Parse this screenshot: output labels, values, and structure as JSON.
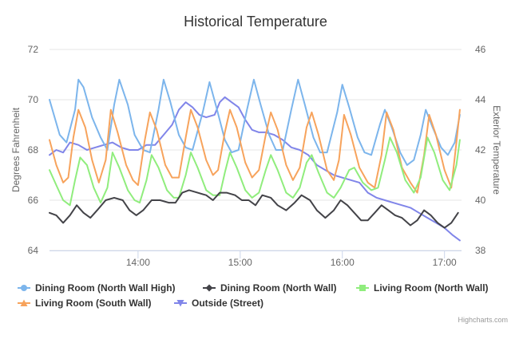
{
  "chart_data": {
    "type": "line",
    "title": "Historical Temperature",
    "ylabel": "Degrees Fahrenheit",
    "y2label": "Exterior Temperature",
    "ylim": [
      64,
      72
    ],
    "y2lim": [
      38,
      46
    ],
    "yticks": [
      "64",
      "66",
      "68",
      "70",
      "72"
    ],
    "y2ticks": [
      "38",
      "40",
      "42",
      "44",
      "46"
    ],
    "xlim": [
      "13:08",
      "17:10"
    ],
    "xticks": [
      "14:00",
      "15:00",
      "16:00",
      "17:00"
    ],
    "legend_position": "bottom",
    "credits": "Highcharts.com",
    "series": [
      {
        "name": "Dining Room (North Wall High)",
        "color": "#7cb5ec",
        "marker": "circle",
        "axis": "left",
        "points": [
          [
            "13:08",
            70.0
          ],
          [
            "13:14",
            68.6
          ],
          [
            "13:18",
            68.3
          ],
          [
            "13:23",
            69.6
          ],
          [
            "13:25",
            70.8
          ],
          [
            "13:28",
            70.5
          ],
          [
            "13:33",
            69.3
          ],
          [
            "13:38",
            68.5
          ],
          [
            "13:42",
            68.0
          ],
          [
            "13:46",
            69.8
          ],
          [
            "13:49",
            70.8
          ],
          [
            "13:54",
            69.8
          ],
          [
            "13:58",
            68.6
          ],
          [
            "14:03",
            68.0
          ],
          [
            "14:07",
            67.9
          ],
          [
            "14:12",
            69.6
          ],
          [
            "14:15",
            70.8
          ],
          [
            "14:19",
            69.9
          ],
          [
            "14:24",
            68.6
          ],
          [
            "14:28",
            68.1
          ],
          [
            "14:32",
            68.0
          ],
          [
            "14:38",
            69.5
          ],
          [
            "14:42",
            70.7
          ],
          [
            "14:46",
            69.7
          ],
          [
            "14:51",
            68.4
          ],
          [
            "14:55",
            67.9
          ],
          [
            "14:59",
            68.0
          ],
          [
            "15:04",
            69.6
          ],
          [
            "15:08",
            70.8
          ],
          [
            "15:12",
            69.8
          ],
          [
            "15:17",
            68.6
          ],
          [
            "15:21",
            68.0
          ],
          [
            "15:25",
            68.0
          ],
          [
            "15:30",
            69.6
          ],
          [
            "15:34",
            70.8
          ],
          [
            "15:38",
            69.8
          ],
          [
            "15:43",
            68.5
          ],
          [
            "15:47",
            67.9
          ],
          [
            "15:51",
            67.9
          ],
          [
            "15:57",
            69.5
          ],
          [
            "16:00",
            70.6
          ],
          [
            "16:04",
            69.7
          ],
          [
            "16:09",
            68.5
          ],
          [
            "16:13",
            67.9
          ],
          [
            "16:17",
            67.8
          ],
          [
            "16:22",
            69.0
          ],
          [
            "16:25",
            69.6
          ],
          [
            "16:29",
            68.9
          ],
          [
            "16:34",
            67.9
          ],
          [
            "16:38",
            67.4
          ],
          [
            "16:42",
            67.6
          ],
          [
            "16:46",
            68.6
          ],
          [
            "16:49",
            69.6
          ],
          [
            "16:53",
            68.9
          ],
          [
            "16:58",
            68.1
          ],
          [
            "17:02",
            67.8
          ],
          [
            "17:06",
            68.3
          ],
          [
            "17:09",
            69.4
          ]
        ]
      },
      {
        "name": "Dining Room (North Wall)",
        "color": "#434348",
        "marker": "diamond",
        "axis": "left",
        "points": [
          [
            "13:08",
            65.5
          ],
          [
            "13:12",
            65.4
          ],
          [
            "13:16",
            65.1
          ],
          [
            "13:20",
            65.4
          ],
          [
            "13:24",
            65.8
          ],
          [
            "13:28",
            65.5
          ],
          [
            "13:32",
            65.3
          ],
          [
            "13:36",
            65.6
          ],
          [
            "13:41",
            66.0
          ],
          [
            "13:46",
            66.1
          ],
          [
            "13:51",
            66.0
          ],
          [
            "13:55",
            65.6
          ],
          [
            "13:59",
            65.4
          ],
          [
            "14:03",
            65.6
          ],
          [
            "14:08",
            66.0
          ],
          [
            "14:13",
            66.0
          ],
          [
            "14:18",
            65.9
          ],
          [
            "14:22",
            65.9
          ],
          [
            "14:26",
            66.3
          ],
          [
            "14:30",
            66.4
          ],
          [
            "14:35",
            66.3
          ],
          [
            "14:40",
            66.2
          ],
          [
            "14:44",
            66.0
          ],
          [
            "14:48",
            66.3
          ],
          [
            "14:52",
            66.3
          ],
          [
            "14:57",
            66.2
          ],
          [
            "15:01",
            66.0
          ],
          [
            "15:05",
            66.0
          ],
          [
            "15:09",
            65.8
          ],
          [
            "15:13",
            66.2
          ],
          [
            "15:18",
            66.1
          ],
          [
            "15:22",
            65.8
          ],
          [
            "15:27",
            65.6
          ],
          [
            "15:32",
            65.9
          ],
          [
            "15:36",
            66.2
          ],
          [
            "15:41",
            66.0
          ],
          [
            "15:45",
            65.6
          ],
          [
            "15:50",
            65.3
          ],
          [
            "15:55",
            65.6
          ],
          [
            "15:59",
            66.0
          ],
          [
            "16:03",
            65.8
          ],
          [
            "16:07",
            65.5
          ],
          [
            "16:11",
            65.2
          ],
          [
            "16:15",
            65.2
          ],
          [
            "16:19",
            65.5
          ],
          [
            "16:23",
            65.8
          ],
          [
            "16:27",
            65.6
          ],
          [
            "16:31",
            65.4
          ],
          [
            "16:35",
            65.3
          ],
          [
            "16:40",
            65.0
          ],
          [
            "16:44",
            65.2
          ],
          [
            "16:48",
            65.6
          ],
          [
            "16:52",
            65.4
          ],
          [
            "16:56",
            65.1
          ],
          [
            "17:00",
            64.9
          ],
          [
            "17:04",
            65.1
          ],
          [
            "17:08",
            65.5
          ]
        ]
      },
      {
        "name": "Living Room (North Wall)",
        "color": "#90ed7d",
        "marker": "square",
        "axis": "left",
        "points": [
          [
            "13:08",
            67.2
          ],
          [
            "13:12",
            66.6
          ],
          [
            "13:16",
            66.0
          ],
          [
            "13:20",
            65.8
          ],
          [
            "13:23",
            66.8
          ],
          [
            "13:26",
            67.7
          ],
          [
            "13:30",
            67.4
          ],
          [
            "13:34",
            66.5
          ],
          [
            "13:38",
            65.9
          ],
          [
            "13:42",
            66.5
          ],
          [
            "13:45",
            67.9
          ],
          [
            "13:49",
            67.3
          ],
          [
            "13:54",
            66.4
          ],
          [
            "13:58",
            66.0
          ],
          [
            "14:01",
            65.9
          ],
          [
            "14:05",
            66.8
          ],
          [
            "14:08",
            67.8
          ],
          [
            "14:12",
            67.3
          ],
          [
            "14:17",
            66.4
          ],
          [
            "14:21",
            66.1
          ],
          [
            "14:24",
            66.1
          ],
          [
            "14:28",
            67.0
          ],
          [
            "14:31",
            67.9
          ],
          [
            "14:35",
            67.3
          ],
          [
            "14:40",
            66.4
          ],
          [
            "14:44",
            66.2
          ],
          [
            "14:48",
            66.2
          ],
          [
            "14:51",
            67.1
          ],
          [
            "14:54",
            67.9
          ],
          [
            "14:58",
            67.3
          ],
          [
            "15:03",
            66.4
          ],
          [
            "15:07",
            66.1
          ],
          [
            "15:11",
            66.3
          ],
          [
            "15:15",
            67.2
          ],
          [
            "15:18",
            67.8
          ],
          [
            "15:22",
            67.2
          ],
          [
            "15:27",
            66.3
          ],
          [
            "15:31",
            66.1
          ],
          [
            "15:35",
            66.5
          ],
          [
            "15:39",
            67.5
          ],
          [
            "15:42",
            67.8
          ],
          [
            "15:46",
            67.1
          ],
          [
            "15:51",
            66.3
          ],
          [
            "15:55",
            66.1
          ],
          [
            "15:59",
            66.5
          ],
          [
            "16:04",
            67.2
          ],
          [
            "16:07",
            67.3
          ],
          [
            "16:12",
            66.7
          ],
          [
            "16:17",
            66.4
          ],
          [
            "16:21",
            66.5
          ],
          [
            "16:25",
            67.6
          ],
          [
            "16:28",
            68.5
          ],
          [
            "16:32",
            67.9
          ],
          [
            "16:37",
            66.8
          ],
          [
            "16:42",
            66.3
          ],
          [
            "16:46",
            66.9
          ],
          [
            "16:50",
            68.5
          ],
          [
            "16:54",
            67.9
          ],
          [
            "16:59",
            66.8
          ],
          [
            "17:03",
            66.4
          ],
          [
            "17:07",
            67.4
          ],
          [
            "17:09",
            68.4
          ]
        ]
      },
      {
        "name": "Living Room (South Wall)",
        "color": "#f7a35c",
        "marker": "triangle",
        "axis": "left",
        "points": [
          [
            "13:08",
            68.4
          ],
          [
            "13:12",
            67.4
          ],
          [
            "13:16",
            66.7
          ],
          [
            "13:19",
            66.9
          ],
          [
            "13:22",
            68.5
          ],
          [
            "13:25",
            69.6
          ],
          [
            "13:29",
            68.9
          ],
          [
            "13:33",
            67.6
          ],
          [
            "13:37",
            66.7
          ],
          [
            "13:41",
            67.6
          ],
          [
            "13:44",
            69.6
          ],
          [
            "13:48",
            68.7
          ],
          [
            "13:53",
            67.4
          ],
          [
            "13:57",
            66.8
          ],
          [
            "14:00",
            66.6
          ],
          [
            "14:04",
            68.4
          ],
          [
            "14:07",
            69.5
          ],
          [
            "14:11",
            68.8
          ],
          [
            "14:16",
            67.4
          ],
          [
            "14:20",
            66.9
          ],
          [
            "14:24",
            66.9
          ],
          [
            "14:28",
            68.5
          ],
          [
            "14:31",
            69.6
          ],
          [
            "14:35",
            68.9
          ],
          [
            "14:40",
            67.6
          ],
          [
            "14:44",
            67.0
          ],
          [
            "14:47",
            67.2
          ],
          [
            "14:51",
            68.7
          ],
          [
            "14:54",
            69.6
          ],
          [
            "14:58",
            68.9
          ],
          [
            "15:03",
            67.5
          ],
          [
            "15:07",
            66.9
          ],
          [
            "15:11",
            67.2
          ],
          [
            "15:15",
            68.6
          ],
          [
            "15:18",
            69.5
          ],
          [
            "15:22",
            68.8
          ],
          [
            "15:27",
            67.4
          ],
          [
            "15:31",
            66.8
          ],
          [
            "15:35",
            67.3
          ],
          [
            "15:39",
            68.9
          ],
          [
            "15:42",
            69.5
          ],
          [
            "15:46",
            68.6
          ],
          [
            "15:51",
            67.2
          ],
          [
            "15:55",
            66.8
          ],
          [
            "15:58",
            67.6
          ],
          [
            "16:01",
            69.4
          ],
          [
            "16:05",
            68.6
          ],
          [
            "16:10",
            67.3
          ],
          [
            "16:15",
            66.7
          ],
          [
            "16:19",
            66.5
          ],
          [
            "16:23",
            67.8
          ],
          [
            "16:26",
            69.5
          ],
          [
            "16:30",
            68.8
          ],
          [
            "16:35",
            67.3
          ],
          [
            "16:40",
            66.7
          ],
          [
            "16:44",
            66.3
          ],
          [
            "16:48",
            67.8
          ],
          [
            "16:51",
            69.4
          ],
          [
            "16:55",
            68.6
          ],
          [
            "17:00",
            67.2
          ],
          [
            "17:04",
            66.5
          ],
          [
            "17:07",
            68.3
          ],
          [
            "17:09",
            69.6
          ]
        ]
      },
      {
        "name": "Outside (Street)",
        "color": "#8085e9",
        "marker": "triangle-down",
        "axis": "right",
        "points": [
          [
            "13:08",
            41.8
          ],
          [
            "13:12",
            42.0
          ],
          [
            "13:16",
            41.9
          ],
          [
            "13:20",
            42.3
          ],
          [
            "13:25",
            42.2
          ],
          [
            "13:30",
            42.0
          ],
          [
            "13:35",
            42.1
          ],
          [
            "13:40",
            42.2
          ],
          [
            "13:45",
            42.3
          ],
          [
            "13:50",
            42.1
          ],
          [
            "13:55",
            42.0
          ],
          [
            "14:00",
            42.0
          ],
          [
            "14:05",
            42.2
          ],
          [
            "14:10",
            42.2
          ],
          [
            "14:15",
            42.6
          ],
          [
            "14:20",
            43.0
          ],
          [
            "14:24",
            43.6
          ],
          [
            "14:28",
            43.9
          ],
          [
            "14:32",
            43.7
          ],
          [
            "14:36",
            43.4
          ],
          [
            "14:40",
            43.3
          ],
          [
            "14:45",
            43.4
          ],
          [
            "14:48",
            43.9
          ],
          [
            "14:51",
            44.1
          ],
          [
            "14:55",
            43.9
          ],
          [
            "14:59",
            43.7
          ],
          [
            "15:03",
            43.2
          ],
          [
            "15:07",
            42.8
          ],
          [
            "15:11",
            42.7
          ],
          [
            "15:15",
            42.7
          ],
          [
            "15:20",
            42.6
          ],
          [
            "15:25",
            42.4
          ],
          [
            "15:30",
            42.1
          ],
          [
            "15:35",
            42.0
          ],
          [
            "15:40",
            41.8
          ],
          [
            "15:45",
            41.4
          ],
          [
            "15:50",
            41.2
          ],
          [
            "15:55",
            41.0
          ],
          [
            "16:00",
            40.9
          ],
          [
            "16:05",
            40.8
          ],
          [
            "16:10",
            40.7
          ],
          [
            "16:15",
            40.3
          ],
          [
            "16:20",
            40.1
          ],
          [
            "16:25",
            40.0
          ],
          [
            "16:30",
            39.9
          ],
          [
            "16:35",
            39.8
          ],
          [
            "16:40",
            39.7
          ],
          [
            "16:45",
            39.5
          ],
          [
            "16:50",
            39.3
          ],
          [
            "16:55",
            39.1
          ],
          [
            "17:00",
            38.9
          ],
          [
            "17:05",
            38.6
          ],
          [
            "17:09",
            38.4
          ]
        ]
      }
    ]
  }
}
